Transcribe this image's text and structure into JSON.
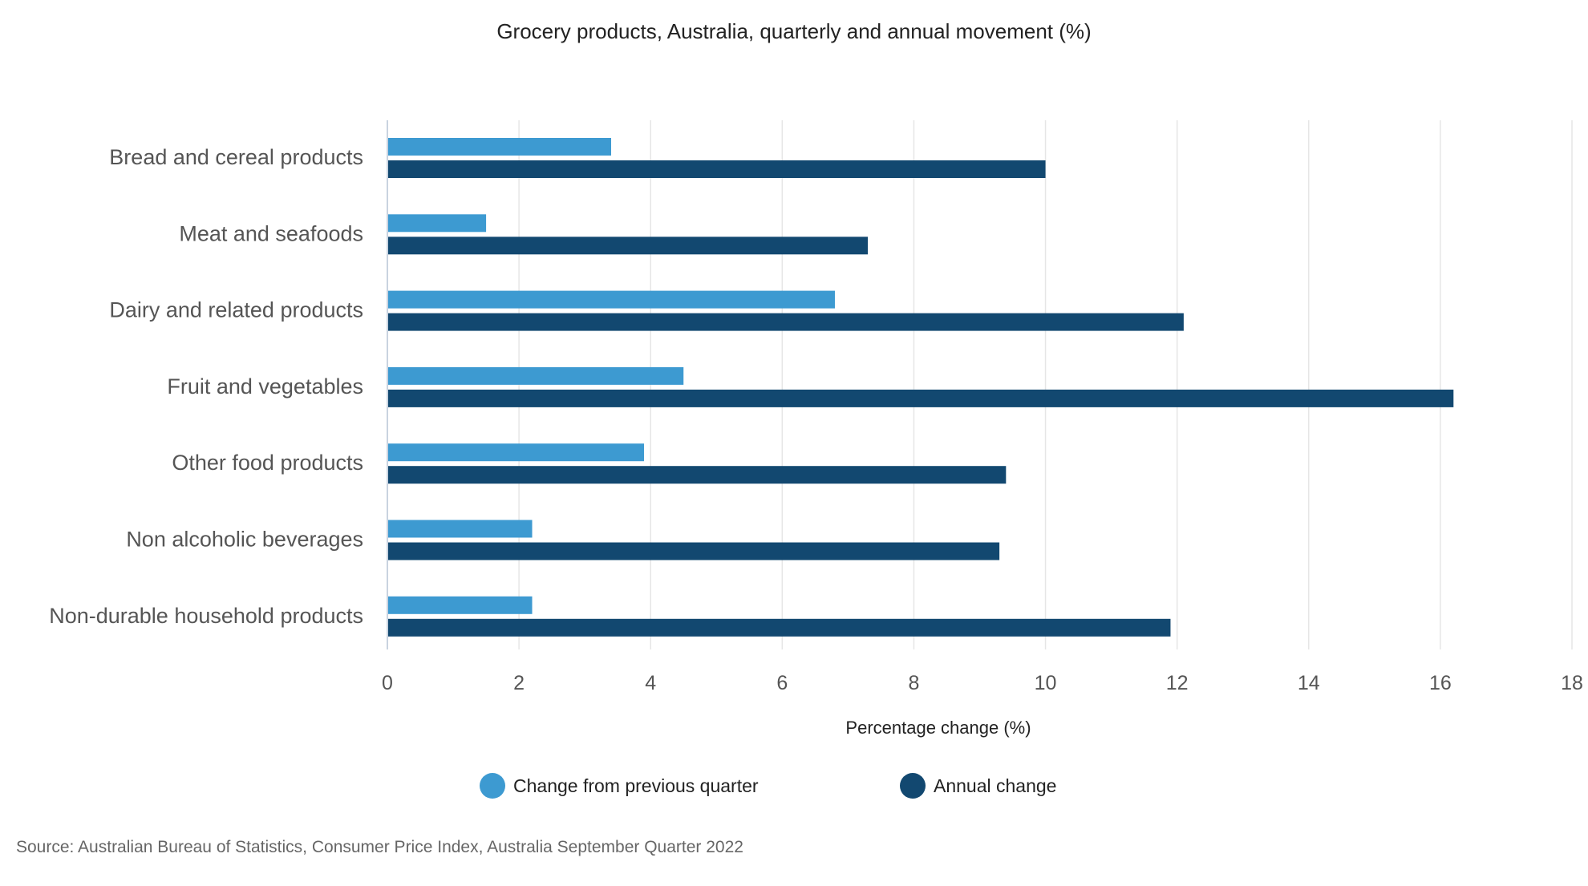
{
  "chart_data": {
    "type": "bar",
    "orientation": "horizontal",
    "title": "Grocery products, Australia, quarterly and annual movement (%)",
    "xlabel": "Percentage change (%)",
    "ylabel": "",
    "xlim": [
      0,
      18
    ],
    "x_ticks": [
      0,
      2,
      4,
      6,
      8,
      10,
      12,
      14,
      16,
      18
    ],
    "grid": "vertical",
    "legend_position": "bottom",
    "categories": [
      "Bread and cereal products",
      "Meat and seafoods",
      "Dairy and related products",
      "Fruit and vegetables",
      "Other food products",
      "Non alcoholic beverages",
      "Non-durable household products"
    ],
    "series": [
      {
        "name": "Change from previous quarter",
        "color": "#3d9ad1",
        "values": [
          3.4,
          1.5,
          6.8,
          4.5,
          3.9,
          2.2,
          2.2
        ]
      },
      {
        "name": "Annual change",
        "color": "#124870",
        "values": [
          10.0,
          7.3,
          12.1,
          16.2,
          9.4,
          9.3,
          11.9
        ]
      }
    ],
    "source": "Source: Australian Bureau of Statistics, Consumer Price Index, Australia September Quarter 2022"
  },
  "colors": {
    "gridline": "#e6e6e6",
    "axis_line": "#c9d3e0",
    "tick_text": "#555555",
    "title_text": "#222222",
    "source_text": "#666666"
  }
}
